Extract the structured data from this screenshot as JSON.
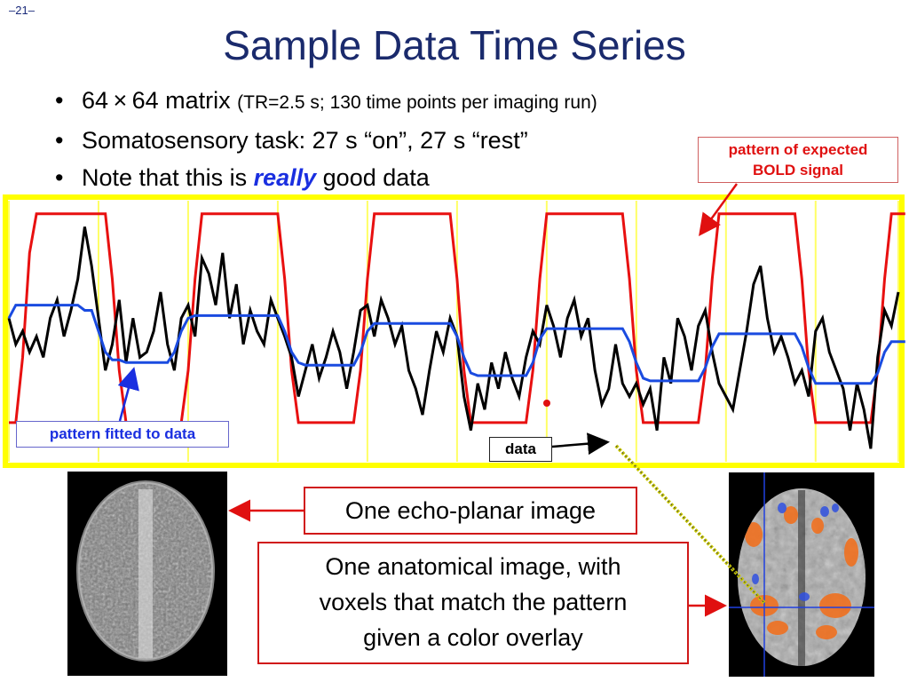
{
  "slide_number": "–21–",
  "title": "Sample Data Time Series",
  "bullets": [
    {
      "main": "64 × 64 matrix ",
      "detail": "(TR=2.5 s; 130 time points per imaging run)"
    },
    {
      "main": "Somatosensory task: 27 s “on”, 27 s “rest”"
    },
    {
      "prefix": "Note that this is ",
      "emph": "really",
      "suffix": " good data"
    }
  ],
  "callouts": {
    "expected_line1": "pattern of expected",
    "expected_line2": "BOLD signal",
    "fitted": "pattern fitted to data",
    "data": "data",
    "epi": "One echo-planar image",
    "anat_line1": "One anatomical image, with",
    "anat_line2": "voxels that match the pattern",
    "anat_line3": "given a color overlay"
  },
  "colors": {
    "plot_border": "#ffff00",
    "expected": "#e81010",
    "fitted": "#1a4be0",
    "data": "#000000",
    "arrow_red": "#e01010",
    "arrow_blue": "#1a2fe0",
    "dashed_link": "#c8c800",
    "overlay_orange": "#f07020",
    "overlay_blue": "#3050e0"
  },
  "chart_data": {
    "type": "line",
    "title": "",
    "xlabel": "",
    "ylabel": "",
    "x_count": 130,
    "grid": "vertical yellow lines at block boundaries",
    "series": [
      {
        "key": "expected",
        "values": [
          0.15,
          0.15,
          0.4,
          0.8,
          0.95,
          0.95,
          0.95,
          0.95,
          0.95,
          0.95,
          0.95,
          0.95,
          0.95,
          0.95,
          0.95,
          0.7,
          0.35,
          0.15,
          0.15,
          0.15,
          0.15,
          0.15,
          0.15,
          0.15,
          0.15,
          0.15,
          0.35,
          0.7,
          0.95,
          0.95,
          0.95,
          0.95,
          0.95,
          0.95,
          0.95,
          0.95,
          0.95,
          0.95,
          0.95,
          0.95,
          0.7,
          0.35,
          0.15,
          0.15,
          0.15,
          0.15,
          0.15,
          0.15,
          0.15,
          0.15,
          0.15,
          0.35,
          0.7,
          0.95,
          0.95,
          0.95,
          0.95,
          0.95,
          0.95,
          0.95,
          0.95,
          0.95,
          0.95,
          0.95,
          0.95,
          0.7,
          0.35,
          0.15,
          0.15,
          0.15,
          0.15,
          0.15,
          0.15,
          0.15,
          0.15,
          0.15,
          0.35,
          0.7,
          0.95,
          0.95,
          0.95,
          0.95,
          0.95,
          0.95,
          0.95,
          0.95,
          0.95,
          0.95,
          0.95,
          0.95,
          0.7,
          0.35,
          0.15,
          0.15,
          0.15,
          0.15,
          0.15,
          0.15,
          0.15,
          0.15,
          0.15,
          0.35,
          0.7,
          0.95,
          0.95,
          0.95,
          0.95,
          0.95,
          0.95,
          0.95,
          0.95,
          0.95,
          0.95,
          0.95,
          0.95,
          0.7,
          0.35,
          0.15,
          0.15,
          0.15,
          0.15,
          0.15,
          0.15,
          0.15,
          0.15,
          0.15,
          0.35,
          0.7,
          0.95,
          0.95,
          0.95
        ]
      },
      {
        "key": "fitted",
        "values": [
          0.55,
          0.6,
          0.6,
          0.6,
          0.6,
          0.6,
          0.6,
          0.6,
          0.6,
          0.6,
          0.6,
          0.58,
          0.58,
          0.5,
          0.42,
          0.39,
          0.39,
          0.38,
          0.38,
          0.38,
          0.38,
          0.38,
          0.38,
          0.38,
          0.42,
          0.5,
          0.55,
          0.56,
          0.56,
          0.56,
          0.56,
          0.56,
          0.56,
          0.56,
          0.56,
          0.56,
          0.56,
          0.56,
          0.56,
          0.56,
          0.5,
          0.42,
          0.38,
          0.37,
          0.37,
          0.37,
          0.37,
          0.37,
          0.37,
          0.37,
          0.37,
          0.42,
          0.5,
          0.53,
          0.53,
          0.53,
          0.53,
          0.53,
          0.53,
          0.53,
          0.53,
          0.53,
          0.53,
          0.53,
          0.53,
          0.48,
          0.4,
          0.34,
          0.33,
          0.33,
          0.33,
          0.33,
          0.33,
          0.33,
          0.33,
          0.33,
          0.38,
          0.47,
          0.51,
          0.51,
          0.51,
          0.51,
          0.51,
          0.51,
          0.51,
          0.51,
          0.51,
          0.51,
          0.51,
          0.51,
          0.46,
          0.38,
          0.32,
          0.31,
          0.31,
          0.31,
          0.31,
          0.31,
          0.31,
          0.31,
          0.31,
          0.36,
          0.44,
          0.49,
          0.49,
          0.49,
          0.49,
          0.49,
          0.49,
          0.49,
          0.49,
          0.49,
          0.49,
          0.49,
          0.49,
          0.44,
          0.36,
          0.3,
          0.3,
          0.3,
          0.3,
          0.3,
          0.3,
          0.3,
          0.3,
          0.3,
          0.34,
          0.42,
          0.46,
          0.46,
          0.46
        ]
      },
      {
        "key": "data",
        "values": [
          0.55,
          0.45,
          0.5,
          0.42,
          0.48,
          0.4,
          0.55,
          0.62,
          0.48,
          0.58,
          0.7,
          0.9,
          0.75,
          0.55,
          0.35,
          0.45,
          0.62,
          0.38,
          0.55,
          0.4,
          0.42,
          0.5,
          0.65,
          0.45,
          0.35,
          0.55,
          0.6,
          0.48,
          0.78,
          0.72,
          0.6,
          0.8,
          0.55,
          0.68,
          0.45,
          0.58,
          0.5,
          0.45,
          0.62,
          0.55,
          0.48,
          0.4,
          0.25,
          0.35,
          0.45,
          0.32,
          0.4,
          0.5,
          0.42,
          0.28,
          0.42,
          0.58,
          0.6,
          0.48,
          0.62,
          0.55,
          0.45,
          0.52,
          0.35,
          0.28,
          0.18,
          0.35,
          0.5,
          0.42,
          0.55,
          0.48,
          0.25,
          0.12,
          0.3,
          0.2,
          0.38,
          0.28,
          0.42,
          0.32,
          0.25,
          0.4,
          0.5,
          0.45,
          0.6,
          0.52,
          0.4,
          0.55,
          0.62,
          0.48,
          0.55,
          0.35,
          0.22,
          0.28,
          0.45,
          0.3,
          0.25,
          0.3,
          0.22,
          0.28,
          0.12,
          0.4,
          0.3,
          0.55,
          0.48,
          0.35,
          0.52,
          0.58,
          0.42,
          0.3,
          0.25,
          0.2,
          0.35,
          0.5,
          0.68,
          0.75,
          0.55,
          0.42,
          0.48,
          0.4,
          0.3,
          0.35,
          0.25,
          0.5,
          0.55,
          0.42,
          0.35,
          0.28,
          0.12,
          0.3,
          0.2,
          0.05,
          0.4,
          0.58,
          0.52,
          0.65
        ]
      }
    ]
  },
  "images": {
    "epi": "echo-planar brain image",
    "anatomical": "anatomical brain image with color overlay"
  }
}
